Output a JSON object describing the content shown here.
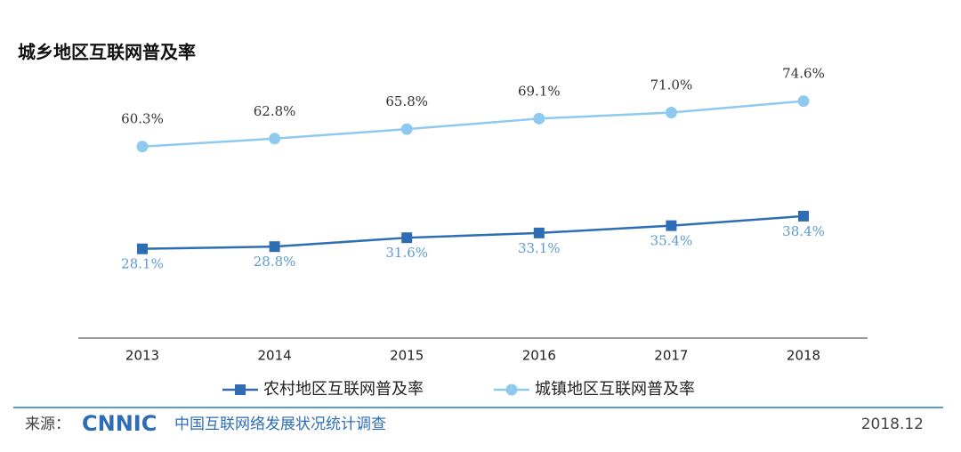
{
  "chart_data": {
    "type": "line",
    "title": "城乡地区互联网普及率",
    "categories": [
      "2013",
      "2014",
      "2015",
      "2016",
      "2017",
      "2018"
    ],
    "series": [
      {
        "name": "农村地区互联网普及率",
        "color": "#2e6db4",
        "marker": "square",
        "label_color": "#5b9bd5",
        "label_position": "below",
        "values": [
          28.1,
          28.8,
          31.6,
          33.1,
          35.4,
          38.4
        ],
        "value_labels": [
          "28.1%",
          "28.8%",
          "31.6%",
          "33.1%",
          "35.4%",
          "38.4%"
        ]
      },
      {
        "name": "城镇地区互联网普及率",
        "color": "#8ec9ef",
        "marker": "circle",
        "label_color": "#333333",
        "label_position": "above",
        "values": [
          60.3,
          62.8,
          65.8,
          69.1,
          71.0,
          74.6
        ],
        "value_labels": [
          "60.3%",
          "62.8%",
          "65.8%",
          "69.1%",
          "71.0%",
          "74.6%"
        ]
      }
    ]
  },
  "footer": {
    "source_label": "来源：",
    "logo": "CNNIC",
    "source": "中国互联网络发展状况统计调查",
    "date": "2018.12"
  }
}
